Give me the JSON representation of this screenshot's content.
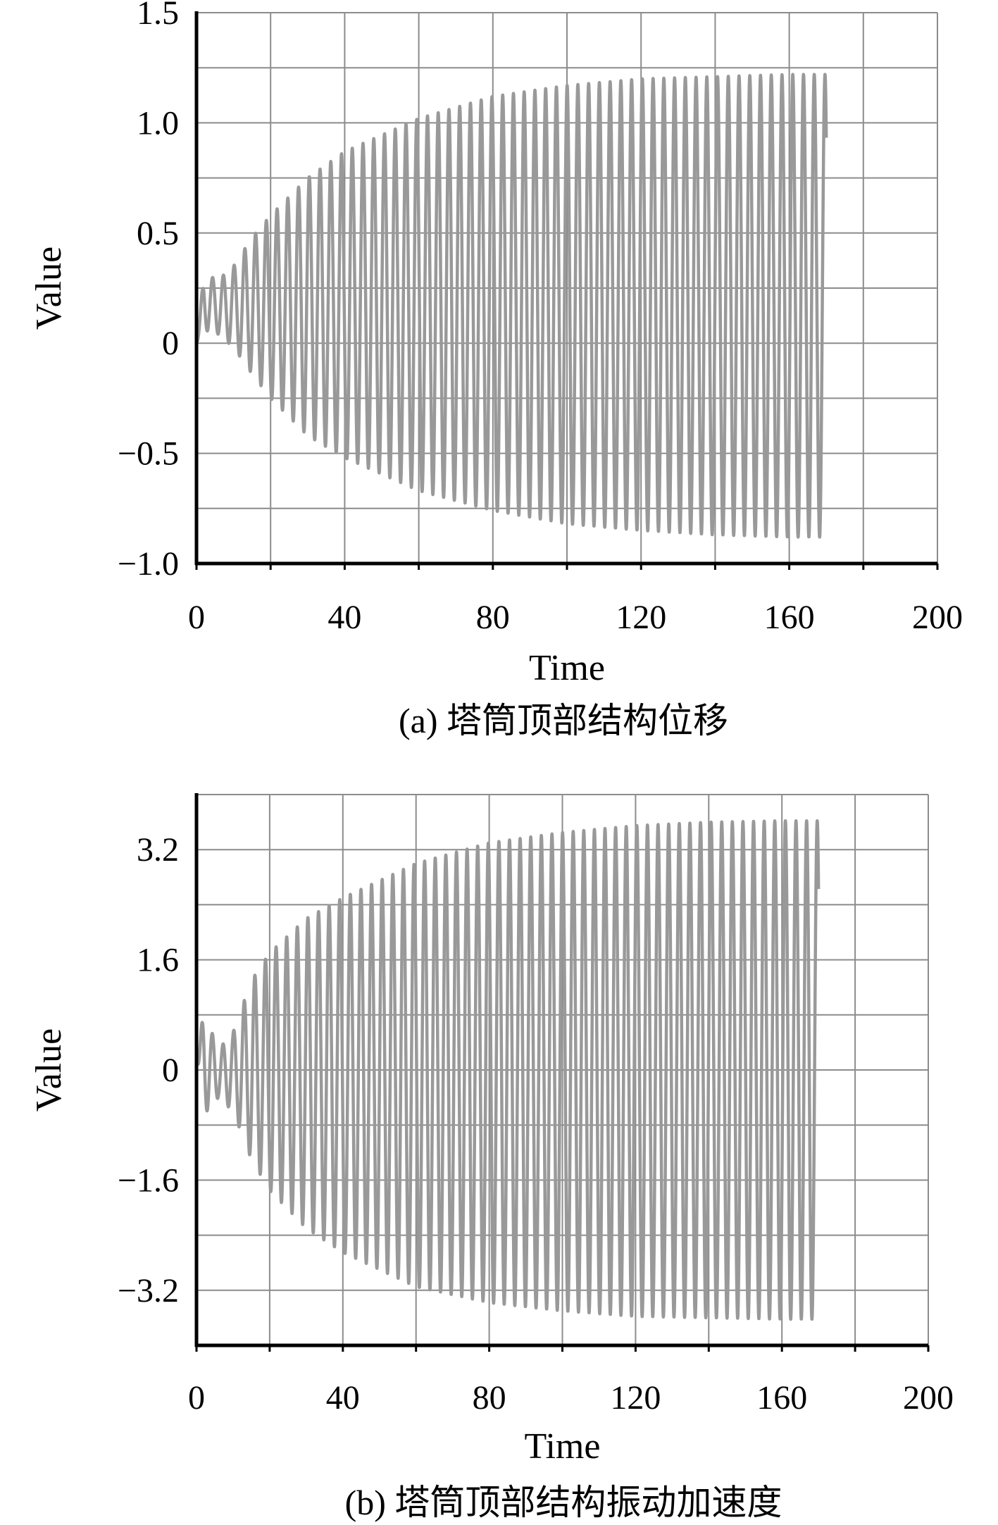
{
  "colors": {
    "series": "#999999",
    "grid": "#8c8c8c",
    "axis": "#000000"
  },
  "chart_data": [
    {
      "type": "line",
      "caption": "(a) 塔筒顶部结构位移",
      "title": "",
      "xlabel": "Time",
      "ylabel": "Value",
      "xlim": [
        0,
        200
      ],
      "ylim": [
        -1.0,
        1.5
      ],
      "grid": true,
      "x_ticks": [
        0,
        40,
        80,
        120,
        160,
        200
      ],
      "x_tick_labels": [
        "0",
        "40",
        "80",
        "120",
        "160",
        "200"
      ],
      "x_minor_ticks": [
        20,
        60,
        100,
        140,
        180
      ],
      "y_ticks": [
        -1.0,
        -0.5,
        0,
        0.5,
        1.0,
        1.5
      ],
      "y_tick_labels": [
        "−1.0",
        "−0.5",
        "0",
        "0.5",
        "1.0",
        "1.5"
      ],
      "y_minor_ticks": [
        -0.75,
        -0.25,
        0.25,
        0.75,
        1.25
      ],
      "series": [
        {
          "x_range": [
            0,
            170
          ],
          "period": 2.9,
          "envelope_t": [
            0,
            2,
            6,
            10,
            15,
            20,
            30,
            40,
            60,
            80,
            100,
            120,
            140,
            160,
            170
          ],
          "envelope_max": [
            0.0,
            0.31,
            0.29,
            0.35,
            0.48,
            0.58,
            0.75,
            0.87,
            1.02,
            1.12,
            1.17,
            1.2,
            1.21,
            1.22,
            1.22
          ],
          "envelope_min": [
            0.0,
            0.06,
            0.04,
            -0.02,
            -0.14,
            -0.25,
            -0.42,
            -0.52,
            -0.67,
            -0.76,
            -0.82,
            -0.85,
            -0.87,
            -0.88,
            -0.88
          ]
        }
      ]
    },
    {
      "type": "line",
      "caption": "(b) 塔筒顶部结构振动加速度",
      "title": "",
      "xlabel": "Time",
      "ylabel": "Value",
      "xlim": [
        0,
        200
      ],
      "ylim": [
        -4.0,
        4.0
      ],
      "grid": true,
      "x_ticks": [
        0,
        40,
        80,
        120,
        160,
        200
      ],
      "x_tick_labels": [
        "0",
        "40",
        "80",
        "120",
        "160",
        "200"
      ],
      "x_minor_ticks": [
        20,
        60,
        100,
        140,
        180
      ],
      "y_ticks": [
        -3.2,
        -1.6,
        0,
        1.6,
        3.2
      ],
      "y_tick_labels": [
        "−3.2",
        "−1.6",
        "0",
        "1.6",
        "3.2"
      ],
      "y_minor_ticks": [
        -2.4,
        -0.8,
        0.8,
        2.4
      ],
      "series": [
        {
          "x_range": [
            0,
            170
          ],
          "period": 2.9,
          "envelope_t": [
            0,
            2,
            6,
            10,
            15,
            20,
            30,
            40,
            60,
            80,
            100,
            120,
            140,
            160,
            170
          ],
          "envelope_max": [
            0.2,
            0.85,
            0.3,
            0.55,
            1.3,
            1.7,
            2.2,
            2.5,
            3.0,
            3.3,
            3.45,
            3.55,
            3.6,
            3.62,
            3.62
          ],
          "envelope_min": [
            0.2,
            -0.65,
            -0.4,
            -0.6,
            -1.3,
            -1.75,
            -2.3,
            -2.65,
            -3.15,
            -3.38,
            -3.5,
            -3.58,
            -3.6,
            -3.62,
            -3.62
          ]
        }
      ]
    }
  ]
}
